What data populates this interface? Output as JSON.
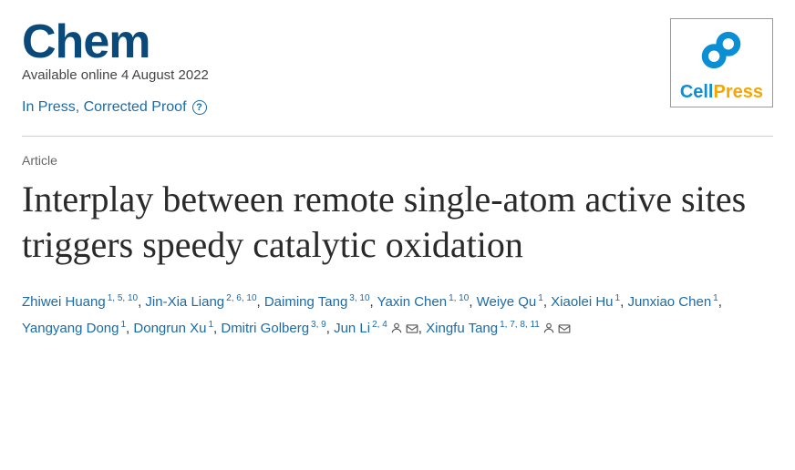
{
  "journal": {
    "name": "Chem",
    "availability": "Available online 4 August 2022",
    "status": "In Press, Corrected Proof"
  },
  "publisher": {
    "name_part1": "Cell",
    "name_part2": "Press",
    "logo_color": "#0a8fd4",
    "accent_color": "#f7a600"
  },
  "article": {
    "type": "Article",
    "title": "Interplay between remote single-atom active sites triggers speedy catalytic oxidation"
  },
  "authors": [
    {
      "name": "Zhiwei Huang",
      "aff": "1, 5, 10",
      "person": false,
      "mail": false
    },
    {
      "name": "Jin-Xia Liang",
      "aff": "2, 6, 10",
      "person": false,
      "mail": false
    },
    {
      "name": "Daiming Tang",
      "aff": "3, 10",
      "person": false,
      "mail": false
    },
    {
      "name": "Yaxin Chen",
      "aff": "1, 10",
      "person": false,
      "mail": false
    },
    {
      "name": "Weiye Qu",
      "aff": "1",
      "person": false,
      "mail": false
    },
    {
      "name": "Xiaolei Hu",
      "aff": "1",
      "person": false,
      "mail": false
    },
    {
      "name": "Junxiao Chen",
      "aff": "1",
      "person": false,
      "mail": false
    },
    {
      "name": "Yangyang Dong",
      "aff": "1",
      "person": false,
      "mail": false
    },
    {
      "name": "Dongrun Xu",
      "aff": "1",
      "person": false,
      "mail": false
    },
    {
      "name": "Dmitri Golberg",
      "aff": "3, 9",
      "person": false,
      "mail": false
    },
    {
      "name": "Jun Li",
      "aff": "2, 4",
      "person": true,
      "mail": true
    },
    {
      "name": "Xingfu Tang",
      "aff": "1, 7, 8, 11",
      "person": true,
      "mail": true
    }
  ],
  "colors": {
    "journal_name": "#0a4a7a",
    "link": "#1a6ba8",
    "body_text": "#333333",
    "muted_text": "#666666",
    "divider": "#d0d0d0",
    "background": "#ffffff"
  },
  "typography": {
    "journal_name_fontsize": 52,
    "title_fontsize": 40,
    "body_fontsize": 15,
    "label_fontsize": 14,
    "aff_fontsize": 10
  }
}
